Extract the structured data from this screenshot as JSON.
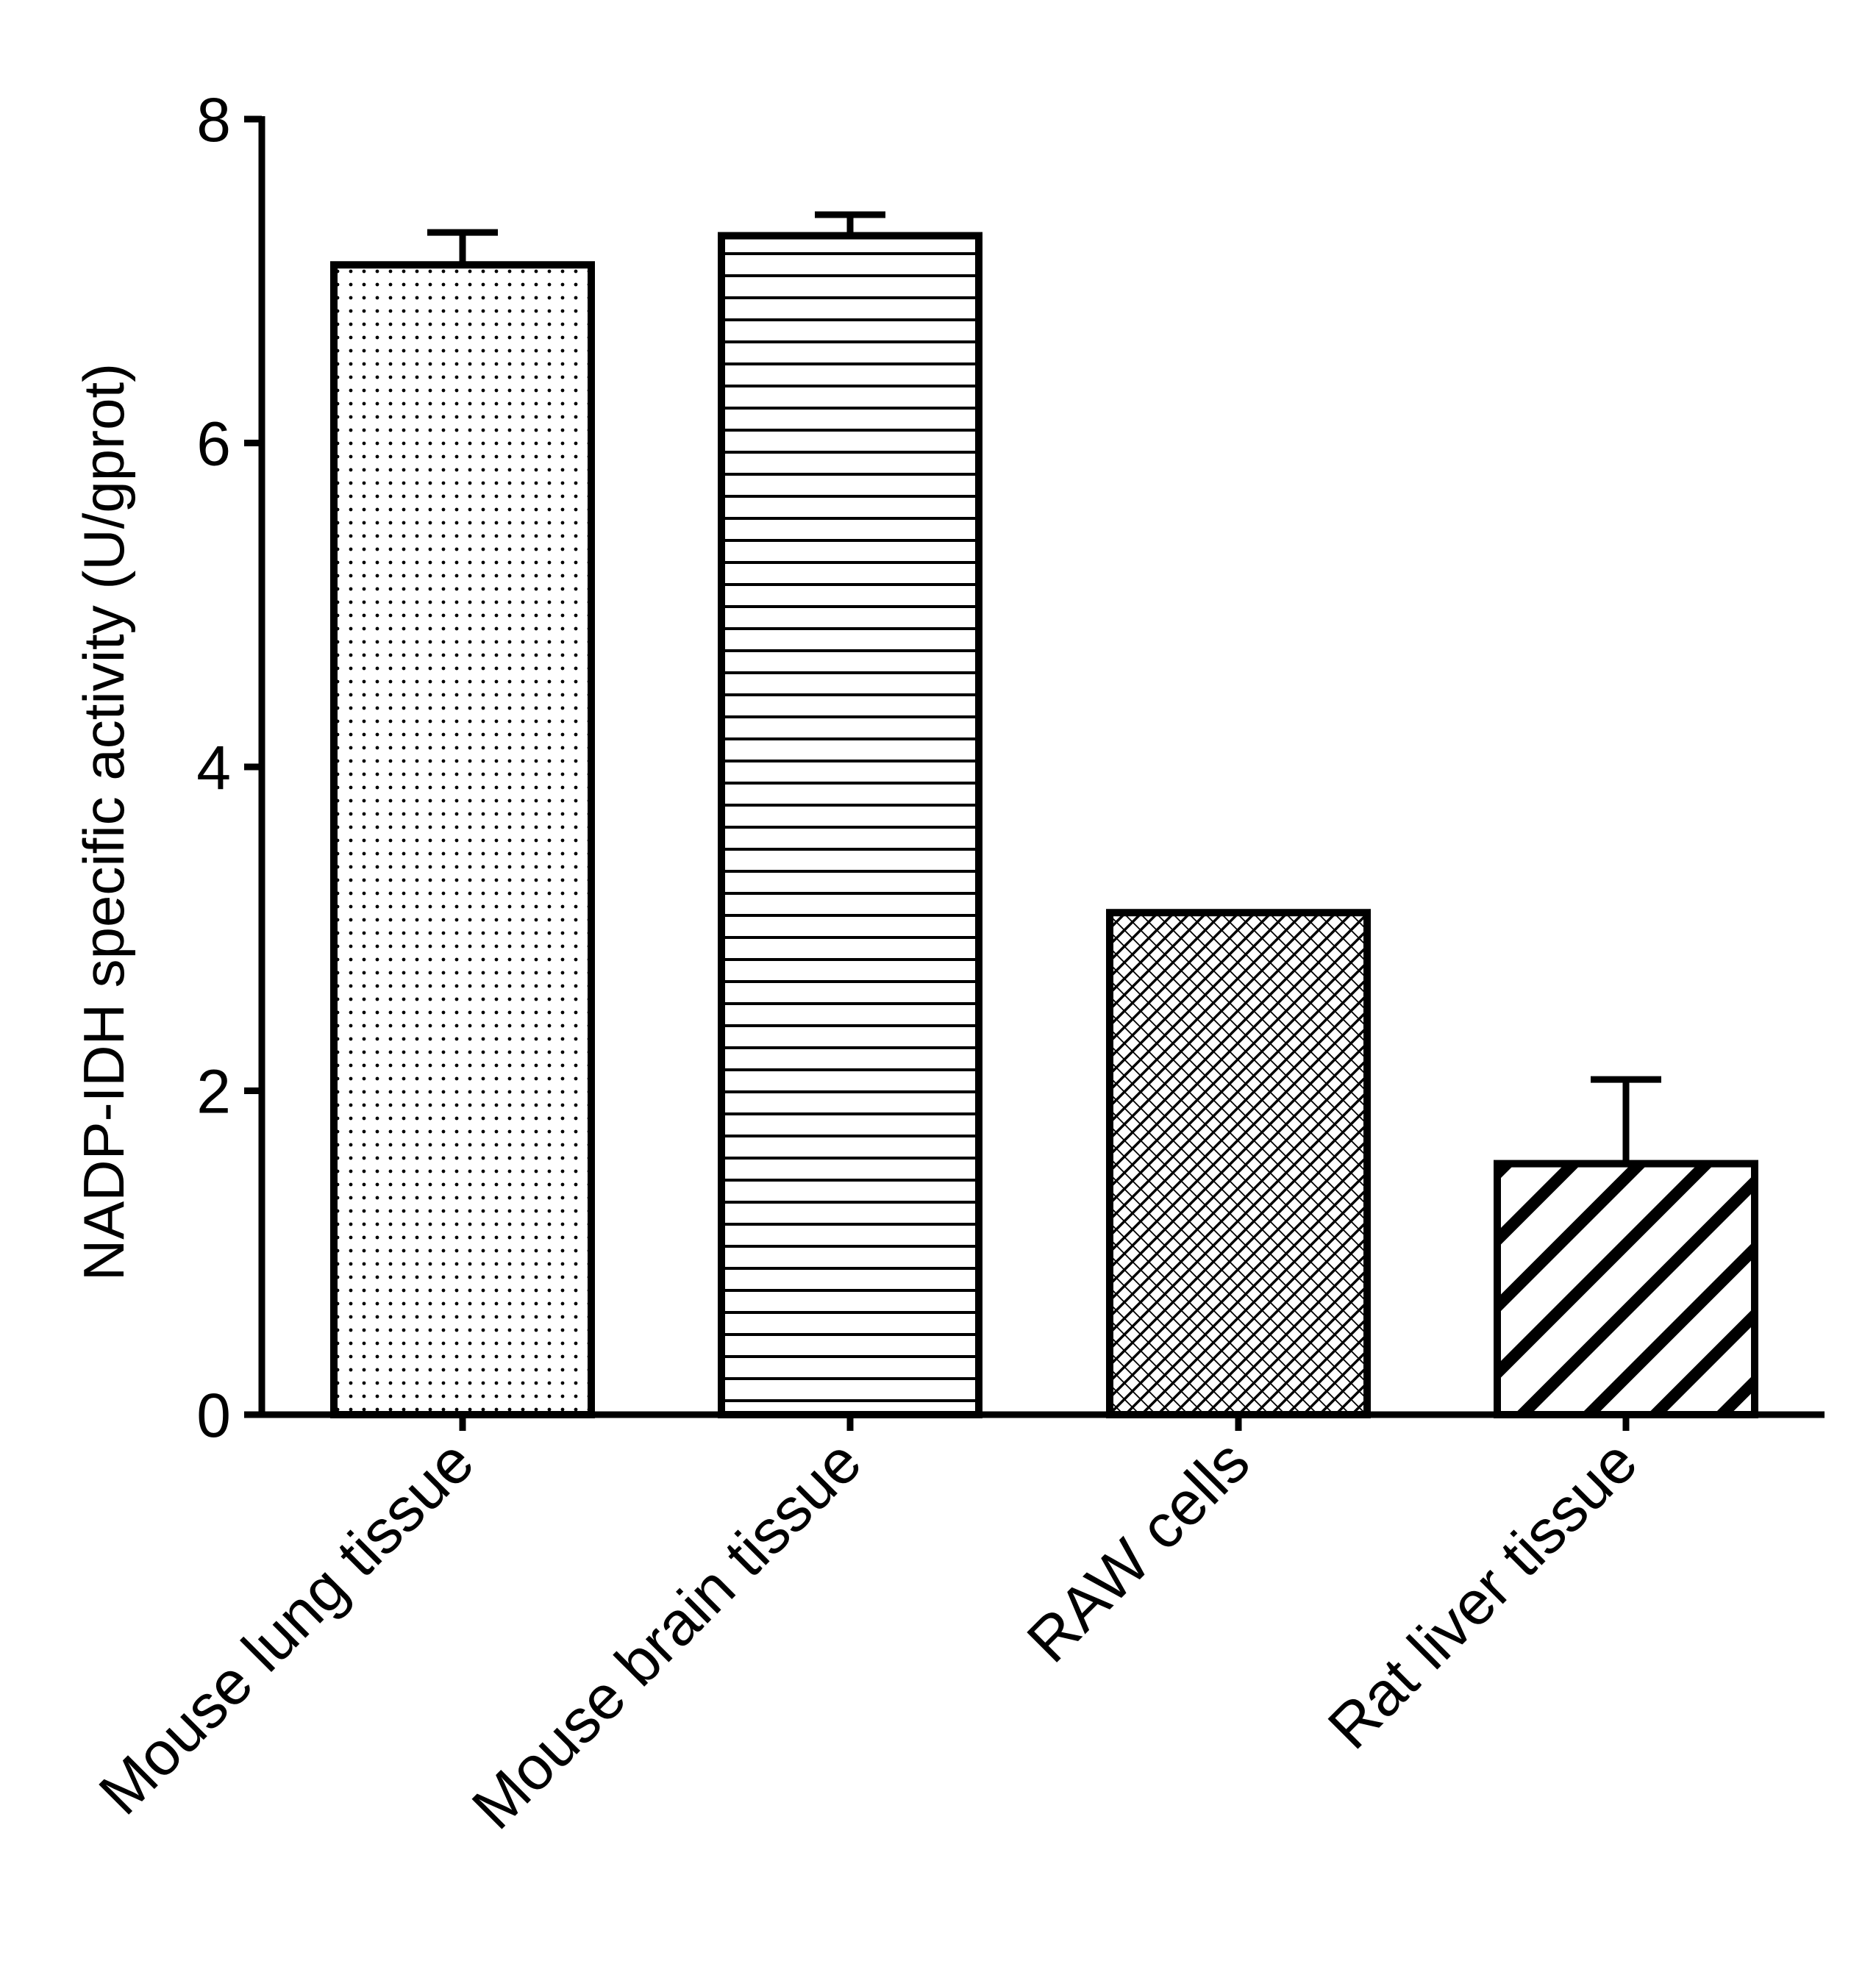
{
  "chart_data": {
    "type": "bar",
    "title": "",
    "xlabel": "",
    "ylabel": "NADP-IDH specific activity (U/gprot)",
    "ylim": [
      0,
      8
    ],
    "yticks": [
      0,
      2,
      4,
      6,
      8
    ],
    "categories": [
      "Mouse lung tissue",
      "Mouse brain tissue",
      "RAW cells",
      "Rat liver tissue"
    ],
    "values": [
      7.1,
      7.28,
      3.1,
      1.55
    ],
    "errors": [
      0.2,
      0.13,
      0.0,
      0.52
    ],
    "patterns": [
      "dots",
      "horizontal-lines",
      "crosshatch",
      "diagonal-stripes"
    ],
    "grid": false,
    "legend": "none",
    "colors": {
      "stroke": "#000000",
      "fill": "#ffffff"
    }
  }
}
